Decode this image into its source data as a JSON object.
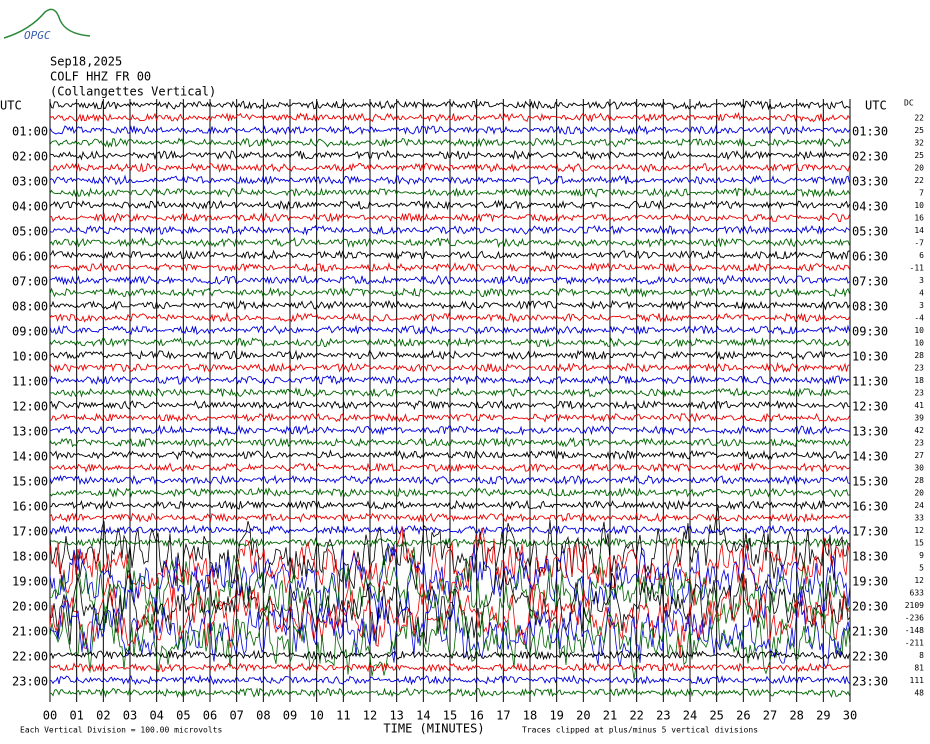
{
  "header": {
    "logo": "OPGC",
    "date": "Sep18,2025",
    "station": "COLF HHZ FR 00",
    "description": "(Collangettes Vertical)"
  },
  "left_axis": {
    "title": "UTC",
    "labels": [
      "01:00",
      "02:00",
      "03:00",
      "04:00",
      "05:00",
      "06:00",
      "07:00",
      "08:00",
      "09:00",
      "10:00",
      "11:00",
      "12:00",
      "13:00",
      "14:00",
      "15:00",
      "16:00",
      "17:00",
      "18:00",
      "19:00",
      "20:00",
      "21:00",
      "22:00",
      "23:00"
    ]
  },
  "right_axis": {
    "title": "UTC",
    "labels": [
      "01:30",
      "02:30",
      "03:30",
      "04:30",
      "05:30",
      "06:30",
      "07:30",
      "08:30",
      "09:30",
      "10:30",
      "11:30",
      "12:30",
      "13:30",
      "14:30",
      "15:30",
      "16:30",
      "17:30",
      "18:30",
      "19:30",
      "20:30",
      "21:30",
      "22:30",
      "23:30"
    ]
  },
  "dc": {
    "title": "DC",
    "values": [
      22,
      25,
      32,
      25,
      20,
      22,
      7,
      10,
      16,
      14,
      -7,
      6,
      -11,
      3,
      4,
      3,
      -4,
      10,
      10,
      28,
      23,
      18,
      23,
      41,
      39,
      42,
      23,
      27,
      30,
      28,
      20,
      24,
      33,
      12,
      15,
      9,
      5,
      12,
      633,
      2109,
      -236,
      -148,
      -211,
      8,
      81,
      111,
      48
    ]
  },
  "x_axis": {
    "labels": [
      "00",
      "01",
      "02",
      "03",
      "04",
      "05",
      "06",
      "07",
      "08",
      "09",
      "10",
      "11",
      "12",
      "13",
      "14",
      "15",
      "16",
      "17",
      "18",
      "19",
      "20",
      "21",
      "22",
      "23",
      "24",
      "25",
      "26",
      "27",
      "28",
      "29",
      "30"
    ],
    "title": "TIME (MINUTES)"
  },
  "footer": {
    "scale": "Each Vertical Division =  100.00 microvolts",
    "clip": "Traces clipped at plus/minus 5 vertical divisions"
  }
}
